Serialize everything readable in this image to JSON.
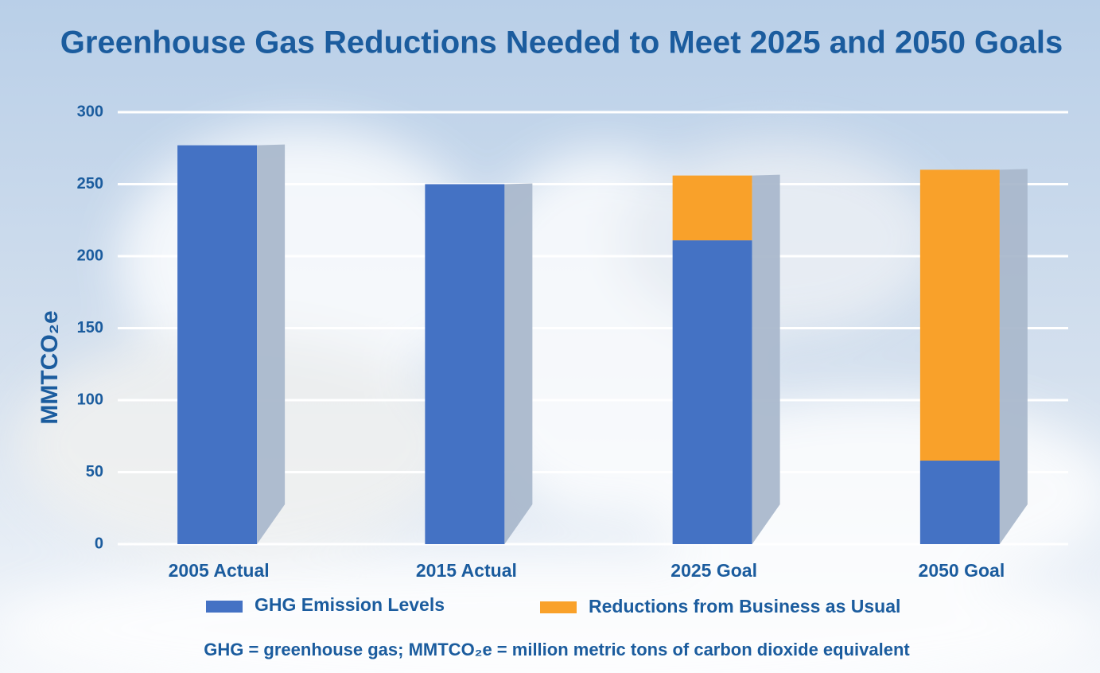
{
  "chart_data": {
    "type": "stacked-bar",
    "title": "Greenhouse Gas Reductions Needed to Meet 2025 and 2050 Goals",
    "y_label": "MMTCO₂e",
    "footnote": "GHG = greenhouse gas; MMTCO₂e = million metric tons of carbon dioxide equivalent",
    "categories": [
      "2005 Actual",
      "2015 Actual",
      "2025 Goal",
      "2050 Goal"
    ],
    "series": [
      {
        "name": "GHG Emission Levels",
        "color": "#4472c4",
        "values": [
          277,
          250,
          211,
          58
        ]
      },
      {
        "name": "Reductions from Business as Usual",
        "color": "#f9a12a",
        "values": [
          null,
          null,
          45,
          202
        ]
      }
    ],
    "ylim": [
      0,
      300
    ],
    "yticks": [
      0,
      50,
      100,
      150,
      200,
      250,
      300
    ],
    "grid": true
  }
}
